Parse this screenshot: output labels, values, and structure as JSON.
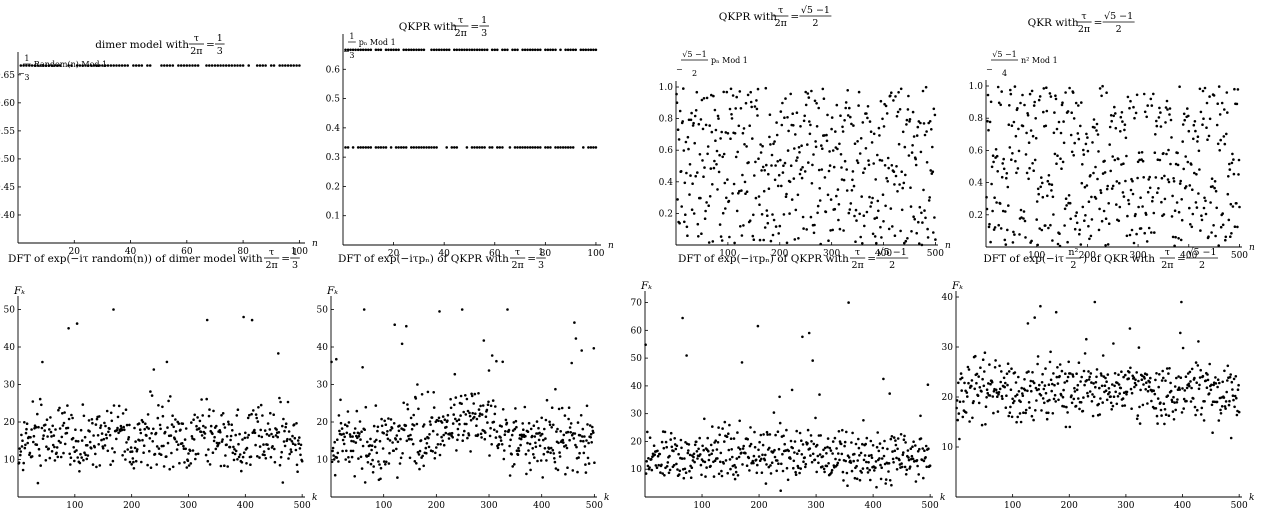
{
  "colors": {
    "points": "#000000",
    "axes": "#000000",
    "background": "#ffffff"
  },
  "chart_data": [
    {
      "type": "scatter",
      "title_prefix": "dimer model with",
      "title_math": {
        "lhs_num": "τ",
        "lhs_den": "2π",
        "rhs_num": "1",
        "rhs_den": "3"
      },
      "ylabel_frac": {
        "num": "1",
        "den": "3"
      },
      "ylabel_text": "Random(n) Mod 1",
      "xlabel": "n",
      "xlim": [
        0,
        102
      ],
      "ylim": [
        0.35,
        0.68
      ],
      "xticks": [
        "20",
        "40",
        "60",
        "80",
        "100"
      ],
      "yticks": [
        "0.40",
        "0.45",
        "0.50",
        "0.55",
        "0.60",
        "0.65"
      ],
      "gen": {
        "kind": "levels",
        "n": 100,
        "levels": [
          0.6667,
          0.3333
        ],
        "seed": 11
      }
    },
    {
      "type": "scatter",
      "title_prefix": "QKPR with",
      "title_math": {
        "lhs_num": "τ",
        "lhs_den": "2π",
        "rhs_num": "1",
        "rhs_den": "3"
      },
      "ylabel_frac": {
        "num": "1",
        "den": "3"
      },
      "ylabel_text": "pₙ Mod 1",
      "xlabel": "n",
      "xlim": [
        0,
        102
      ],
      "ylim": [
        0,
        0.7
      ],
      "xticks": [
        "20",
        "40",
        "60",
        "80",
        "100"
      ],
      "yticks": [
        "0.1",
        "0.2",
        "0.3",
        "0.4",
        "0.5",
        "0.6"
      ],
      "gen": {
        "kind": "levels",
        "n": 100,
        "levels": [
          0.6667,
          0.3333
        ],
        "seed": 23
      }
    },
    {
      "type": "scatter",
      "title_prefix": "QKPR with",
      "title_math": {
        "lhs_num": "τ",
        "lhs_den": "2π",
        "rhs_num": "√5 −1",
        "rhs_den": "2"
      },
      "ylabel_frac": {
        "num": "√5 −1",
        "den": "2"
      },
      "ylabel_text": "pₙ Mod 1",
      "xlabel": "n",
      "xlim": [
        0,
        505
      ],
      "ylim": [
        0,
        1.0
      ],
      "xticks": [
        "100",
        "200",
        "300",
        "400",
        "500"
      ],
      "yticks": [
        "0.2",
        "0.4",
        "0.6",
        "0.8",
        "1.0"
      ],
      "gen": {
        "kind": "quasi",
        "n": 500,
        "seed": 37
      }
    },
    {
      "type": "scatter",
      "title_prefix": "QKR with",
      "title_math": {
        "lhs_num": "τ",
        "lhs_den": "2π",
        "rhs_num": "√5 −1",
        "rhs_den": "2"
      },
      "ylabel_frac": {
        "num": "√5 −1",
        "den": "4"
      },
      "ylabel_text": "n² Mod 1",
      "xlabel": "n",
      "xlim": [
        0,
        505
      ],
      "ylim": [
        0,
        1.0
      ],
      "xticks": [
        "100",
        "200",
        "300",
        "400",
        "500"
      ],
      "yticks": [
        "0.2",
        "0.4",
        "0.6",
        "0.8",
        "1.0"
      ],
      "gen": {
        "kind": "quad",
        "n": 500,
        "seed": 41
      }
    },
    {
      "type": "scatter",
      "title_prefix": "DFT of exp(−iτ random(n)) of dimer model with",
      "title_math": {
        "lhs_num": "τ",
        "lhs_den": "2π",
        "rhs_num": "1",
        "rhs_den": "3"
      },
      "ylabel_text": "Fₖ",
      "xlabel": "k",
      "xlim": [
        0,
        505
      ],
      "ylim": [
        0,
        52
      ],
      "xticks": [
        "100",
        "200",
        "300",
        "400",
        "500"
      ],
      "yticks": [
        "10",
        "20",
        "30",
        "40",
        "50"
      ],
      "gen": {
        "kind": "dft",
        "n": 500,
        "mean": 16,
        "spread": 9,
        "max": 50,
        "sym": true,
        "seed": 53
      }
    },
    {
      "type": "scatter",
      "title_prefix": "DFT of exp(−iτpₙ) of QKPR with",
      "title_math": {
        "lhs_num": "τ",
        "lhs_den": "2π",
        "rhs_num": "1",
        "rhs_den": "3"
      },
      "ylabel_text": "Fₖ",
      "xlabel": "k",
      "xlim": [
        0,
        505
      ],
      "ylim": [
        0,
        52
      ],
      "xticks": [
        "100",
        "200",
        "300",
        "400",
        "500"
      ],
      "yticks": [
        "10",
        "20",
        "30",
        "40",
        "50"
      ],
      "gen": {
        "kind": "dft",
        "n": 500,
        "mean": 15,
        "spread": 9,
        "max": 50,
        "hump": 8,
        "seed": 67
      }
    },
    {
      "type": "scatter",
      "title_prefix": "DFT of exp(−iτpₙ) of QKPR with",
      "title_math": {
        "lhs_num": "τ",
        "lhs_den": "2π",
        "rhs_num": "√5 −1",
        "rhs_den": "2"
      },
      "ylabel_text": "Fₖ",
      "xlabel": "k",
      "xlim": [
        0,
        505
      ],
      "ylim": [
        0,
        72
      ],
      "xticks": [
        "100",
        "200",
        "300",
        "400",
        "500"
      ],
      "yticks": [
        "10",
        "20",
        "30",
        "40",
        "50",
        "60",
        "70"
      ],
      "gen": {
        "kind": "dft",
        "n": 500,
        "mean": 15,
        "spread": 10,
        "max": 70,
        "seed": 79
      }
    },
    {
      "type": "scatter",
      "title_prefix": "DFT of exp(−iτ",
      "title_mid": {
        "num": "n²",
        "den": "2"
      },
      "title_after": ") of QKR with",
      "title_math": {
        "lhs_num": "τ",
        "lhs_den": "2π",
        "rhs_num": "√5 −1",
        "rhs_den": "2"
      },
      "ylabel_text": "Fₖ",
      "xlabel": "k",
      "xlim": [
        0,
        505
      ],
      "ylim": [
        0,
        40
      ],
      "xticks": [
        "100",
        "200",
        "300",
        "400",
        "500"
      ],
      "yticks": [
        "10",
        "20",
        "30",
        "40"
      ],
      "gen": {
        "kind": "dft",
        "n": 500,
        "mean": 21,
        "spread": 6,
        "max": 39,
        "seed": 97
      }
    }
  ]
}
